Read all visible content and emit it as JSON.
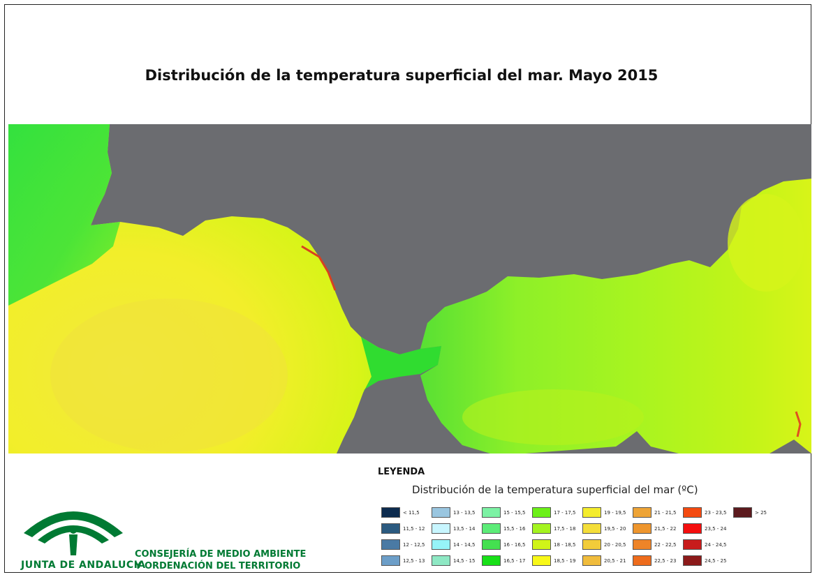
{
  "title": "Distribución de la temperatura superficial del mar. Mayo 2015",
  "legend": {
    "heading": "LEYENDA",
    "subtitle": "Distribución de la temperatura superficial del mar",
    "unit": "(ºC)",
    "classes": [
      {
        "label": "< 11,5",
        "color": "#0d2b4e"
      },
      {
        "label": "11,5 - 12",
        "color": "#2b5a80"
      },
      {
        "label": "12 - 12,5",
        "color": "#4a7aa4"
      },
      {
        "label": "12,5 - 13",
        "color": "#6c9ec8"
      },
      {
        "label": "13 - 13,5",
        "color": "#9ac6e0"
      },
      {
        "label": "13,5 - 14",
        "color": "#c8f6ff"
      },
      {
        "label": "14 - 14,5",
        "color": "#96f4f8"
      },
      {
        "label": "14,5 - 15",
        "color": "#8ee8c4"
      },
      {
        "label": "15 - 15,5",
        "color": "#7cf2a4"
      },
      {
        "label": "15,5 - 16",
        "color": "#5cec78"
      },
      {
        "label": "16 - 16,5",
        "color": "#44e050"
      },
      {
        "label": "16,5 - 17",
        "color": "#18e018"
      },
      {
        "label": "17 - 17,5",
        "color": "#6cf018"
      },
      {
        "label": "17,5 - 18",
        "color": "#a4f420"
      },
      {
        "label": "18 - 18,5",
        "color": "#d0f418"
      },
      {
        "label": "18,5 - 19",
        "color": "#f8f818"
      },
      {
        "label": "19 - 19,5",
        "color": "#f4ec2c"
      },
      {
        "label": "19,5 - 20",
        "color": "#f4de3a"
      },
      {
        "label": "20 - 20,5",
        "color": "#f2cc3a"
      },
      {
        "label": "20,5 - 21",
        "color": "#f0bc3c"
      },
      {
        "label": "21 - 21,5",
        "color": "#eea436"
      },
      {
        "label": "21,5 - 22",
        "color": "#ee962e"
      },
      {
        "label": "22 - 22,5",
        "color": "#ee8428"
      },
      {
        "label": "22,5 - 23",
        "color": "#ee6c1c"
      },
      {
        "label": "23 - 23,5",
        "color": "#f44a10"
      },
      {
        "label": "23,5 - 24",
        "color": "#f40e0e"
      },
      {
        "label": "24 - 24,5",
        "color": "#c81c1c"
      },
      {
        "label": "24,5 - 25",
        "color": "#8c1a1a"
      },
      {
        "label": "> 25",
        "color": "#5c1a1e"
      }
    ]
  },
  "logo": {
    "text": "JUNTA DE ANDALUCIA",
    "icon": "andalucia-arch-icon",
    "color": "#007a33"
  },
  "organization": {
    "line1": "CONSEJERÍA DE MEDIO AMBIENTE",
    "line2": "Y ORDENACIÓN DEL TERRITORIO"
  },
  "map_colors": {
    "land": "#6b6c70"
  }
}
